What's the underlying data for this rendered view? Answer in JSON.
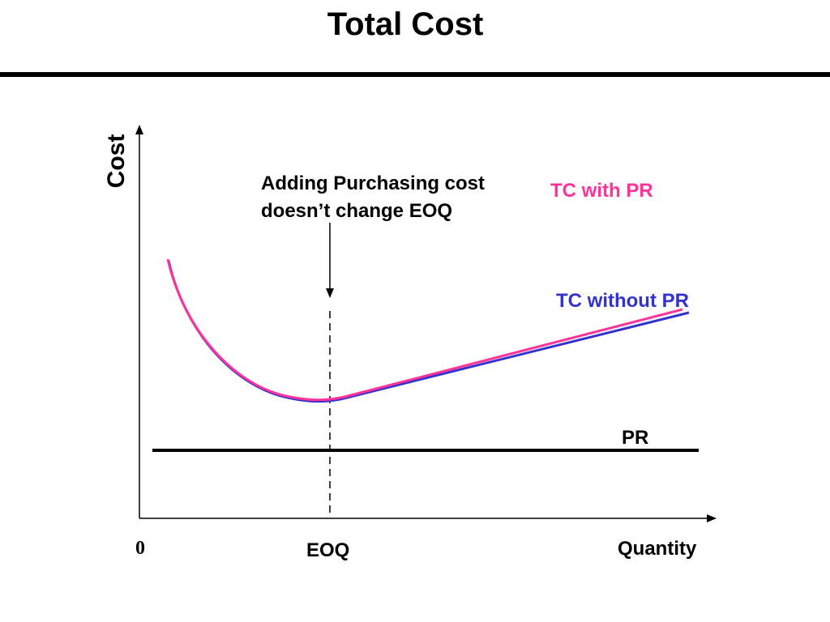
{
  "slide": {
    "title": "Total Cost"
  },
  "axes": {
    "y_label": "Cost",
    "x_label": "Quantity",
    "origin": "0"
  },
  "markers": {
    "eoq_label": "EOQ"
  },
  "annotation": {
    "line1": "Adding Purchasing cost",
    "line2": "doesn’t change EOQ"
  },
  "curves": {
    "tc_with_pr": {
      "label": "TC with PR",
      "color": "#ff3399"
    },
    "tc_without_pr": {
      "label": "TC without PR",
      "color": "#3333cc"
    },
    "pr": {
      "label": "PR",
      "color": "#000000"
    }
  }
}
